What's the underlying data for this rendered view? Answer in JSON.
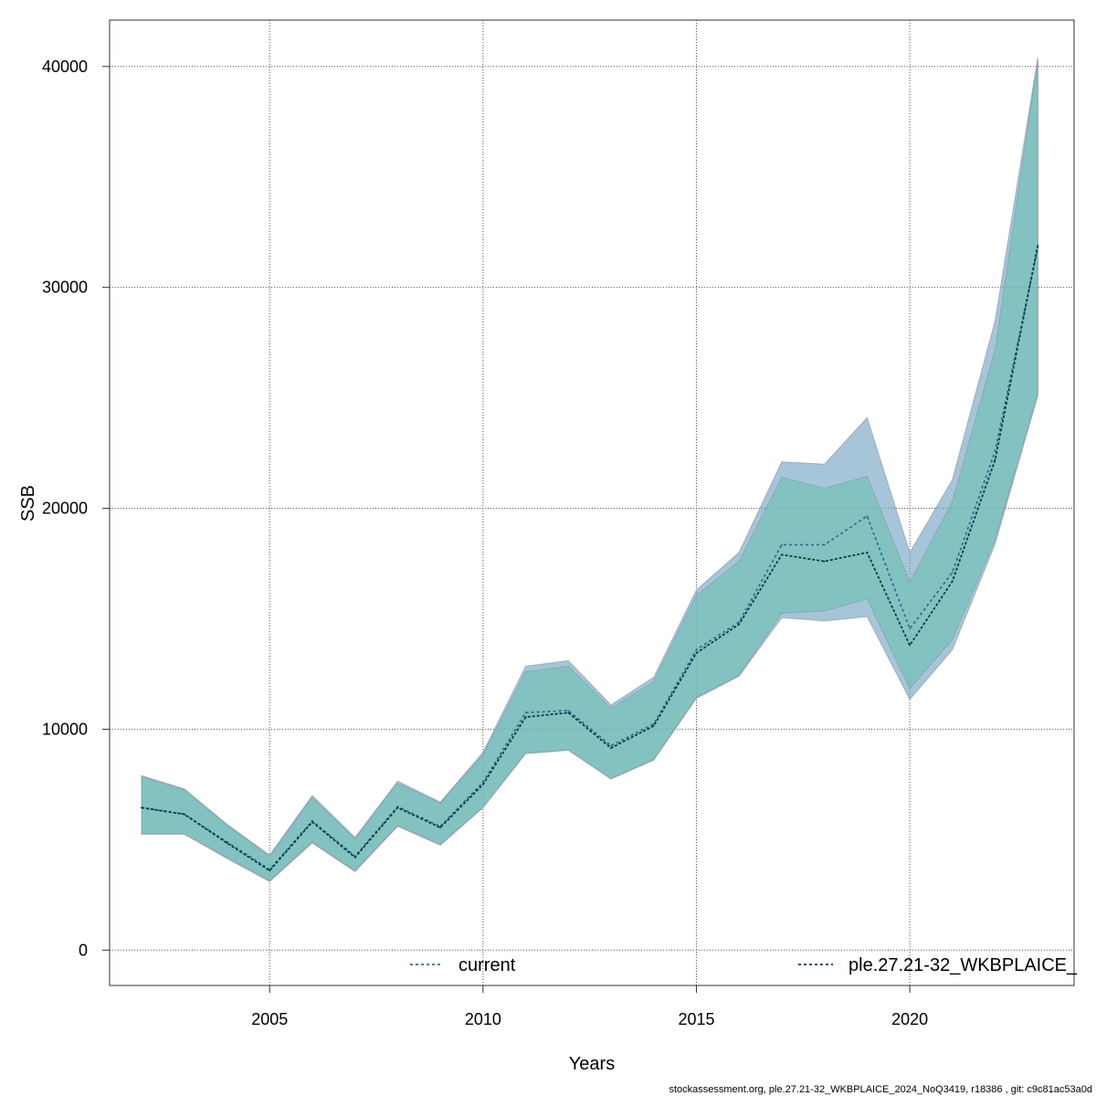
{
  "chart_data": {
    "type": "area",
    "xlabel": "Years",
    "ylabel": "SSB",
    "xlim": [
      2001.25,
      2023.85
    ],
    "ylim": [
      -1600,
      42100
    ],
    "xticks": [
      2005,
      2010,
      2015,
      2020
    ],
    "yticks": [
      0,
      10000,
      20000,
      30000,
      40000
    ],
    "grid": true,
    "legend_position": "bottom",
    "x": [
      2002,
      2003,
      2004,
      2005,
      2006,
      2007,
      2008,
      2009,
      2010,
      2011,
      2012,
      2013,
      2014,
      2015,
      2016,
      2017,
      2018,
      2019,
      2020,
      2021,
      2022,
      2023
    ],
    "series": [
      {
        "name": "current",
        "color": "#2a6f97",
        "band_color": "#6a9fbf",
        "values": [
          6450,
          6150,
          4900,
          3650,
          5850,
          4250,
          6500,
          5600,
          7600,
          10750,
          10850,
          9250,
          10250,
          13600,
          14850,
          18350,
          18350,
          19650,
          14550,
          17100,
          22600,
          31800
        ],
        "lower": [
          5250,
          5250,
          4150,
          3100,
          4850,
          3550,
          5600,
          4750,
          6450,
          8900,
          9050,
          7750,
          8600,
          11400,
          12400,
          15050,
          14900,
          15100,
          11350,
          13600,
          18400,
          25100
        ],
        "upper": [
          7900,
          7300,
          5700,
          4300,
          7000,
          5100,
          7650,
          6700,
          8950,
          12850,
          13100,
          11100,
          12350,
          16300,
          18000,
          22100,
          22000,
          24100,
          18000,
          21300,
          28500,
          40400
        ]
      },
      {
        "name": "ple.27.21-32_WKBPLAICE_",
        "color": "#0a3d3d",
        "band_color": "#6fc1b5",
        "values": [
          6450,
          6150,
          4850,
          3600,
          5800,
          4200,
          6450,
          5550,
          7500,
          10550,
          10750,
          9150,
          10150,
          13450,
          14750,
          17900,
          17600,
          18000,
          13800,
          16700,
          22200,
          31900
        ],
        "lower": [
          5250,
          5250,
          4200,
          3150,
          4900,
          3600,
          5650,
          4800,
          6450,
          8900,
          9050,
          7750,
          8650,
          11450,
          12450,
          15250,
          15350,
          15900,
          11850,
          14050,
          18600,
          25200
        ],
        "upper": [
          7850,
          7250,
          5650,
          4250,
          6900,
          5050,
          7550,
          6650,
          8850,
          12600,
          12850,
          10950,
          12150,
          16050,
          17600,
          21400,
          20900,
          21450,
          16650,
          20300,
          27200,
          40300
        ]
      }
    ]
  },
  "footer": "stockassessment.org, ple.27.21-32_WKBPLAICE_2024_NoQ3419, r18386 , git: c9c81ac53a0d"
}
